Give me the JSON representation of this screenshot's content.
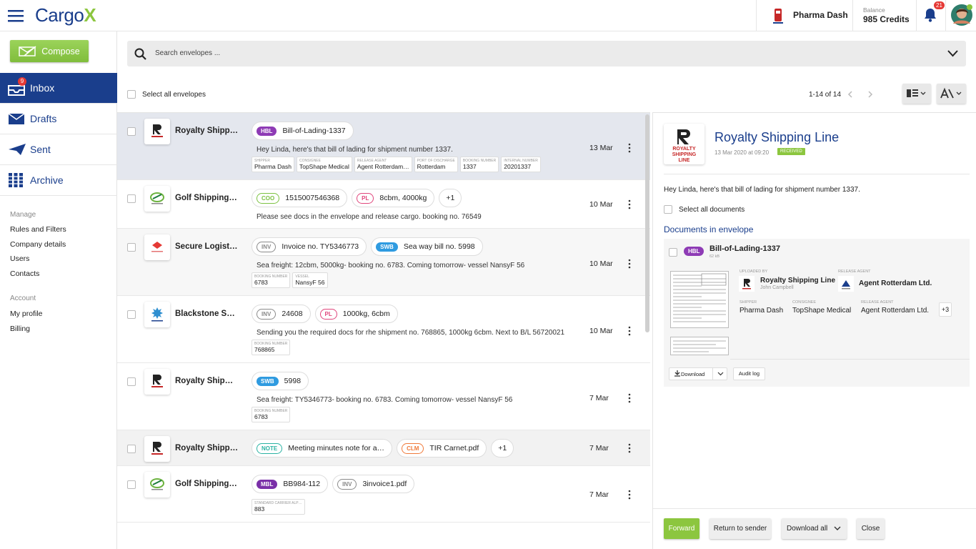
{
  "header": {
    "logo_main": "Cargo",
    "logo_accent": "X",
    "company": "Pharma Dash",
    "balance_label": "Balance",
    "balance": "985 Credits",
    "notifications": "21"
  },
  "sidebar": {
    "compose": "Compose",
    "nav": [
      {
        "label": "Inbox",
        "badge": "9"
      },
      {
        "label": "Drafts"
      },
      {
        "label": "Sent"
      },
      {
        "label": "Archive"
      }
    ],
    "manage_title": "Manage",
    "manage_links": [
      "Rules and Filters",
      "Company details",
      "Users",
      "Contacts"
    ],
    "account_title": "Account",
    "account_links": [
      "My profile",
      "Billing"
    ]
  },
  "toolbar": {
    "search_placeholder": "Search envelopes ...",
    "select_all": "Select all envelopes",
    "pagination": "1-14 of 14"
  },
  "envelopes": [
    {
      "sender": "Royalty Shipp…",
      "logo": "royalty",
      "background": "#e4e7ee",
      "tags": [
        {
          "type": "HBL",
          "text": "Bill-of-Lading-1337",
          "color": "#8e3bb5",
          "filled": true
        }
      ],
      "message": "Hey Linda, here's that bill of lading for shipment number 1337.",
      "fields": [
        {
          "label": "SHIPPER",
          "value": "Pharma Dash"
        },
        {
          "label": "CONSIGNEE",
          "value": "TopShape Medical"
        },
        {
          "label": "RELEASE AGENT",
          "value": "Agent Rotterdam…"
        },
        {
          "label": "PORT OF DISCHARGE",
          "value": "Rotterdam"
        },
        {
          "label": "BOOKING NUMBER",
          "value": "1337"
        },
        {
          "label": "INTERNAL NUMBER",
          "value": "20201337"
        }
      ],
      "date": "13 Mar"
    },
    {
      "sender": "Golf Shipping…",
      "logo": "golf",
      "background": "#ffffff",
      "tags": [
        {
          "type": "COO",
          "text": "1515007546368",
          "color": "#7cc242",
          "filled": false
        },
        {
          "type": "PL",
          "text": "8cbm, 4000kg",
          "color": "#e0467c",
          "filled": false
        },
        {
          "text": "+1"
        }
      ],
      "message": "Please see docs in the envelope and release cargo. booking no. 76549",
      "fields": [],
      "date": "10 Mar"
    },
    {
      "sender": "Secure Logist…",
      "logo": "secure",
      "background": "#f7f7f7",
      "tags": [
        {
          "type": "INV",
          "text": "Invoice no. TY5346773",
          "color": "#8a8a8a",
          "filled": false
        },
        {
          "type": "SWB",
          "text": "Sea way bill no. 5998",
          "color": "#2f9be0",
          "filled": true
        }
      ],
      "message": "Sea freight: 12cbm, 5000kg- booking no. 6783. Coming tomorrow- vessel NansyF 56",
      "fields": [
        {
          "label": "BOOKING NUMBER",
          "value": "6783"
        },
        {
          "label": "VESSEL",
          "value": "NansyF 56"
        }
      ],
      "date": "10 Mar"
    },
    {
      "sender": "Blackstone S…",
      "logo": "blackstone",
      "background": "#ffffff",
      "tags": [
        {
          "type": "INV",
          "text": "24608",
          "color": "#8a8a8a",
          "filled": false
        },
        {
          "type": "PL",
          "text": "1000kg, 6cbm",
          "color": "#e0467c",
          "filled": false
        }
      ],
      "message": "Sending you the required docs for rhe shipment no. 768865, 1000kg 6cbm. Next to B/L 56720021",
      "fields": [
        {
          "label": "BOOKING NUMBER",
          "value": "768865"
        }
      ],
      "date": "10 Mar"
    },
    {
      "sender": "Royalty Ship…",
      "logo": "royalty",
      "background": "#ffffff",
      "tags": [
        {
          "type": "SWB",
          "text": "5998",
          "color": "#2f9be0",
          "filled": true
        }
      ],
      "message": "Sea freight: TY5346773- booking no. 6783. Coming tomorrow- vessel NansyF 56",
      "fields": [
        {
          "label": "BOOKING NUMBER",
          "value": "6783"
        }
      ],
      "date": "7 Mar"
    },
    {
      "sender": "Royalty Shipp…",
      "logo": "royalty",
      "background": "#f2f2f2",
      "tags": [
        {
          "type": "NOTE",
          "text": "Meeting minutes note for a…",
          "color": "#2bb3a3",
          "filled": false
        },
        {
          "type": "CLM",
          "text": "TIR Carnet.pdf",
          "color": "#f07a3a",
          "filled": false
        },
        {
          "text": "+1"
        }
      ],
      "fields": [],
      "date": "7 Mar"
    },
    {
      "sender": "Golf Shipping…",
      "logo": "golf",
      "background": "#ffffff",
      "tags": [
        {
          "type": "MBL",
          "text": "BB984-112",
          "color": "#7a2fa8",
          "filled": true
        },
        {
          "type": "INV",
          "text": "3invoice1.pdf",
          "color": "#8a8a8a",
          "filled": false
        }
      ],
      "fields": [
        {
          "label": "STANDARD CARRIER ALP…",
          "value": "883"
        }
      ],
      "date": "7 Mar"
    }
  ],
  "detail": {
    "logo_text": "ROYALTY SHIPPING LINE",
    "sender": "Royalty Shipping Line",
    "date": "13 Mar 2020 at 09:20",
    "status": "RECEIVED",
    "message": "Hey Linda, here's that bill of lading for shipment number 1337.",
    "select_all": "Select all documents",
    "documents_title": "Documents in envelope",
    "document": {
      "type": "HBL",
      "name": "Bill-of-Lading-1337",
      "size": "62 kB",
      "uploaded_by_label": "UPLOADED BY",
      "uploaded_by": "Royalty Shipping Line",
      "uploader": "John Campbell",
      "release_agent_label": "RELEASE AGENT",
      "release_agent": "Agent Rotterdam Ltd.",
      "fields": [
        {
          "label": "SHIPPER",
          "value": "Pharma Dash"
        },
        {
          "label": "CONSIGNEE",
          "value": "TopShape Medical"
        },
        {
          "label": "RELEASE AGENT",
          "value": "Agent Rotterdam Ltd."
        }
      ],
      "more": "+3",
      "download": "Download",
      "audit_log": "Audit log"
    },
    "actions": {
      "forward": "Forward",
      "return": "Return to sender",
      "download_all": "Download all",
      "close": "Close"
    }
  }
}
